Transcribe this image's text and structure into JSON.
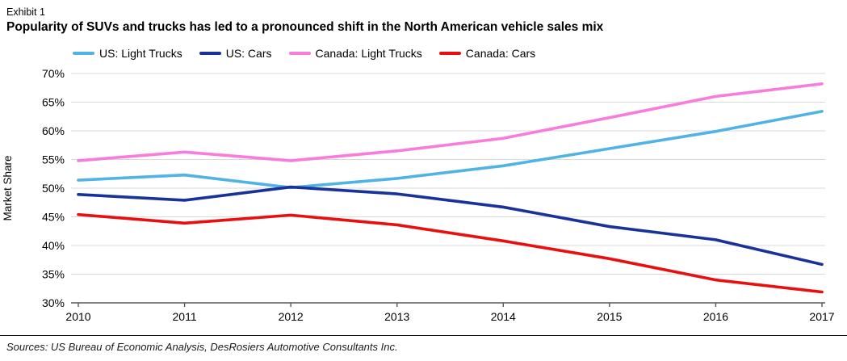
{
  "header": {
    "exhibit": "Exhibit 1",
    "title": "Popularity of SUVs and trucks has led to a pronounced shift in the North American vehicle sales mix"
  },
  "footer": {
    "sources": "Sources: US Bureau of Economic Analysis, DesRosiers Automotive Consultants Inc."
  },
  "chart_data": {
    "type": "line",
    "title": "",
    "xlabel": "",
    "ylabel": "Market Share",
    "x": [
      2010,
      2011,
      2012,
      2013,
      2014,
      2015,
      2016,
      2017
    ],
    "series": [
      {
        "name": "US: Light Trucks",
        "color": "#4FB3E5",
        "values": [
          51.4,
          52.3,
          50.1,
          51.7,
          53.9,
          56.9,
          59.9,
          63.4
        ]
      },
      {
        "name": "US: Cars",
        "color": "#19329B",
        "values": [
          48.9,
          47.9,
          50.2,
          49.0,
          46.7,
          43.3,
          41.0,
          36.7
        ]
      },
      {
        "name": "Canada: Light Trucks",
        "color": "#F97BDD",
        "values": [
          54.8,
          56.3,
          54.8,
          56.5,
          58.7,
          62.3,
          66.0,
          68.2
        ]
      },
      {
        "name": "Canada: Cars",
        "color": "#E90F0F",
        "values": [
          45.4,
          43.9,
          45.3,
          43.6,
          40.8,
          37.7,
          34.0,
          31.9
        ]
      }
    ],
    "ylim": [
      30,
      70
    ],
    "ytick_step": 5,
    "ytick_labels": [
      "30%",
      "35%",
      "40%",
      "45%",
      "50%",
      "55%",
      "60%",
      "65%",
      "70%"
    ],
    "ytick_format": "percent",
    "grid": "horizontal",
    "legend_position": "top"
  },
  "colors": {
    "gridline": "#d9d9d9",
    "axis": "#595959",
    "text": "#000000"
  }
}
